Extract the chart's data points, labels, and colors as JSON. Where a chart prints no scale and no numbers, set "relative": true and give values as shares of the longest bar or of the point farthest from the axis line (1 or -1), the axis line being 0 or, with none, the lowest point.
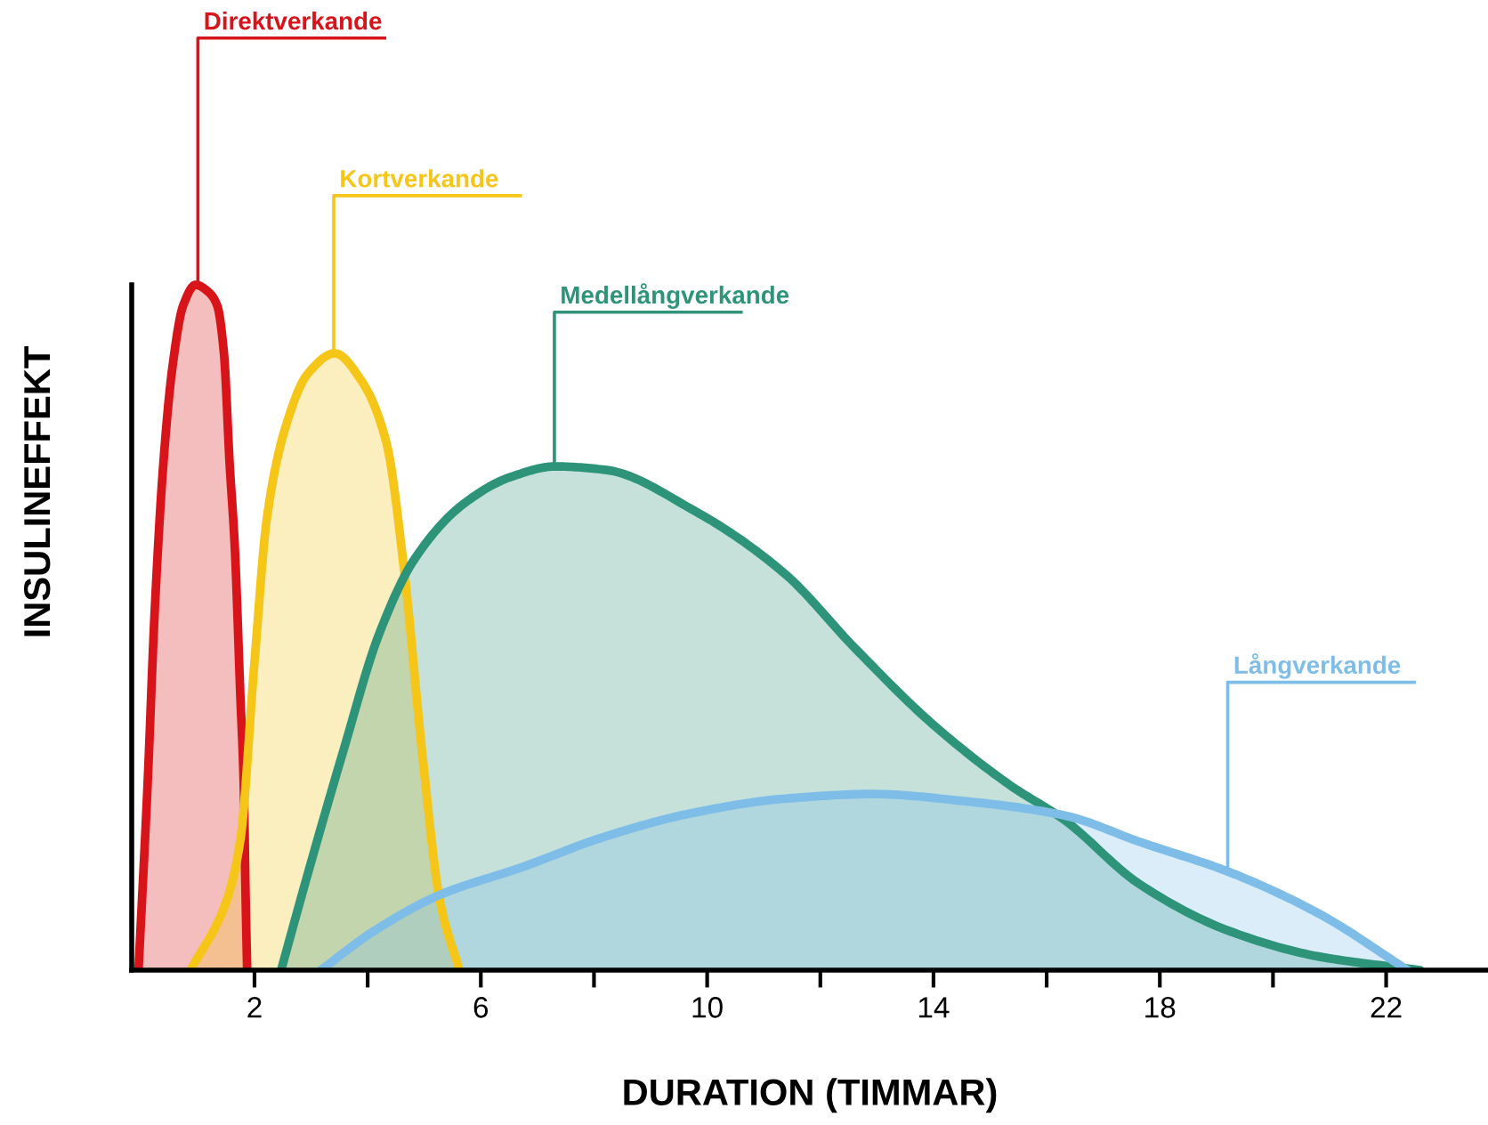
{
  "chart_data": {
    "type": "area",
    "relative": true,
    "xlabel": "DURATION (TIMMAR)",
    "ylabel": "INSULINEFFEKT",
    "xlim": [
      -0.17,
      23.8
    ],
    "xticks": [
      2,
      {
        "value": 4,
        "label": null
      },
      6,
      {
        "value": 8,
        "label": null
      },
      10,
      {
        "value": 12,
        "label": null
      },
      14,
      {
        "value": 16,
        "label": null
      },
      18,
      {
        "value": 20,
        "label": null
      },
      22
    ],
    "tick_labels": "x",
    "grid": false,
    "series": [
      {
        "name": "Direktverkande",
        "color": "#d7141a",
        "x": [
          -0.05,
          0.11,
          0.24,
          0.39,
          0.55,
          0.74,
          0.96,
          1.18,
          1.34,
          1.46,
          1.56,
          1.65,
          1.75,
          1.81,
          1.84,
          1.87
        ],
        "values": [
          0,
          0.27,
          0.53,
          0.74,
          0.88,
          0.97,
          1.0,
          0.99,
          0.97,
          0.9,
          0.74,
          0.62,
          0.4,
          0.27,
          0.12,
          0
        ]
      },
      {
        "name": "Kortverkande",
        "color": "#f5c518",
        "x": [
          0.87,
          1.5,
          1.75,
          2.0,
          2.22,
          2.54,
          2.94,
          3.42,
          3.89,
          4.33,
          4.65,
          4.96,
          5.28,
          5.62
        ],
        "values": [
          0,
          0.1,
          0.19,
          0.45,
          0.66,
          0.79,
          0.87,
          0.9,
          0.86,
          0.77,
          0.58,
          0.32,
          0.1,
          0
        ]
      },
      {
        "name": "Medellångverkande",
        "color": "#2e9479",
        "x": [
          2.47,
          2.94,
          3.57,
          4.2,
          4.83,
          5.69,
          6.54,
          7.32,
          8.2,
          9.78,
          11.35,
          12.61,
          13.97,
          15.35,
          16.3,
          17.65,
          19.23,
          20.8,
          22.6
        ],
        "values": [
          0,
          0.14,
          0.32,
          0.49,
          0.6,
          0.68,
          0.72,
          0.735,
          0.73,
          0.67,
          0.58,
          0.47,
          0.36,
          0.27,
          0.22,
          0.125,
          0.057,
          0.02,
          0
        ]
      },
      {
        "name": "Långverkande",
        "color": "#7dbde8",
        "x": [
          3.17,
          4.11,
          5.28,
          6.72,
          8.2,
          9.78,
          11.35,
          12.93,
          14.5,
          16.3,
          17.65,
          19.23,
          20.8,
          22.38
        ],
        "values": [
          0,
          0.057,
          0.11,
          0.15,
          0.195,
          0.23,
          0.25,
          0.257,
          0.247,
          0.226,
          0.187,
          0.143,
          0.083,
          0
        ]
      }
    ]
  }
}
